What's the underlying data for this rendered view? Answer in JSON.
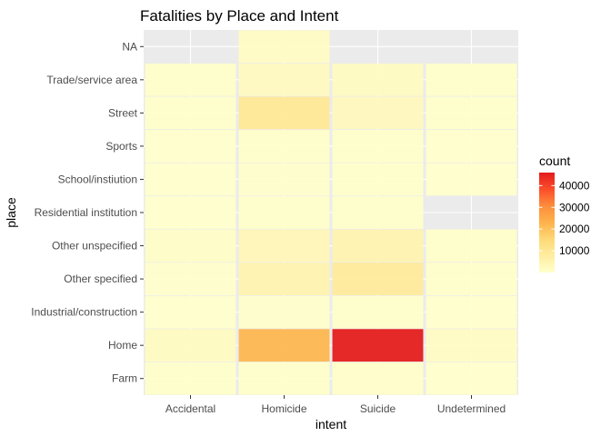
{
  "chart_data": {
    "type": "heatmap",
    "title": "Fatalities by Place and Intent",
    "xlabel": "intent",
    "ylabel": "place",
    "x_categories": [
      "Accidental",
      "Homicide",
      "Suicide",
      "Undetermined"
    ],
    "y_categories": [
      "Farm",
      "Home",
      "Industrial/construction",
      "Other specified",
      "Other unspecified",
      "Residential institution",
      "School/instiution",
      "Sports",
      "Street",
      "Trade/service area",
      "NA"
    ],
    "cells": [
      {
        "x": "Accidental",
        "y": "Farm",
        "value": 100
      },
      {
        "x": "Homicide",
        "y": "Farm",
        "value": 100
      },
      {
        "x": "Suicide",
        "y": "Farm",
        "value": 500
      },
      {
        "x": "Undetermined",
        "y": "Farm",
        "value": 50
      },
      {
        "x": "Accidental",
        "y": "Home",
        "value": 1800
      },
      {
        "x": "Homicide",
        "y": "Home",
        "value": 22000
      },
      {
        "x": "Suicide",
        "y": "Home",
        "value": 45500
      },
      {
        "x": "Undetermined",
        "y": "Home",
        "value": 1300
      },
      {
        "x": "Accidental",
        "y": "Industrial/construction",
        "value": 30
      },
      {
        "x": "Homicide",
        "y": "Industrial/construction",
        "value": 250
      },
      {
        "x": "Suicide",
        "y": "Industrial/construction",
        "value": 200
      },
      {
        "x": "Undetermined",
        "y": "Industrial/construction",
        "value": 20
      },
      {
        "x": "Accidental",
        "y": "Other specified",
        "value": 250
      },
      {
        "x": "Homicide",
        "y": "Other specified",
        "value": 5000
      },
      {
        "x": "Suicide",
        "y": "Other specified",
        "value": 8500
      },
      {
        "x": "Undetermined",
        "y": "Other specified",
        "value": 150
      },
      {
        "x": "Accidental",
        "y": "Other unspecified",
        "value": 1000
      },
      {
        "x": "Homicide",
        "y": "Other unspecified",
        "value": 3500
      },
      {
        "x": "Suicide",
        "y": "Other unspecified",
        "value": 5000
      },
      {
        "x": "Undetermined",
        "y": "Other unspecified",
        "value": 300
      },
      {
        "x": "Accidental",
        "y": "Residential institution",
        "value": 50
      },
      {
        "x": "Homicide",
        "y": "Residential institution",
        "value": 150
      },
      {
        "x": "Suicide",
        "y": "Residential institution",
        "value": 200
      },
      {
        "x": "Accidental",
        "y": "School/instiution",
        "value": 20
      },
      {
        "x": "Homicide",
        "y": "School/instiution",
        "value": 250
      },
      {
        "x": "Suicide",
        "y": "School/instiution",
        "value": 150
      },
      {
        "x": "Undetermined",
        "y": "School/instiution",
        "value": 20
      },
      {
        "x": "Accidental",
        "y": "Sports",
        "value": 20
      },
      {
        "x": "Homicide",
        "y": "Sports",
        "value": 100
      },
      {
        "x": "Suicide",
        "y": "Sports",
        "value": 100
      },
      {
        "x": "Undetermined",
        "y": "Sports",
        "value": 10
      },
      {
        "x": "Accidental",
        "y": "Street",
        "value": 200
      },
      {
        "x": "Homicide",
        "y": "Street",
        "value": 9500
      },
      {
        "x": "Suicide",
        "y": "Street",
        "value": 2500
      },
      {
        "x": "Undetermined",
        "y": "Street",
        "value": 150
      },
      {
        "x": "Accidental",
        "y": "Trade/service area",
        "value": 300
      },
      {
        "x": "Homicide",
        "y": "Trade/service area",
        "value": 2000
      },
      {
        "x": "Suicide",
        "y": "Trade/service area",
        "value": 1800
      },
      {
        "x": "Undetermined",
        "y": "Trade/service area",
        "value": 100
      },
      {
        "x": "Homicide",
        "y": "NA",
        "value": 1200
      }
    ],
    "legend": {
      "title": "count",
      "ticks": [
        10000,
        20000,
        30000,
        40000
      ],
      "tick_labels": [
        "10000",
        "20000",
        "30000",
        "40000"
      ],
      "range": [
        0,
        46000
      ],
      "low_color": "#ffffcc",
      "high_color": "#e31a1c",
      "position": "right"
    },
    "colors": {
      "panel_background": "#ebebeb",
      "grid_line": "#ffffff",
      "palette": [
        "#ffffcc",
        "#ffeda0",
        "#fed976",
        "#feb24c",
        "#fd8d3c",
        "#fc4e2a",
        "#e31a1c"
      ]
    },
    "grid": true
  }
}
